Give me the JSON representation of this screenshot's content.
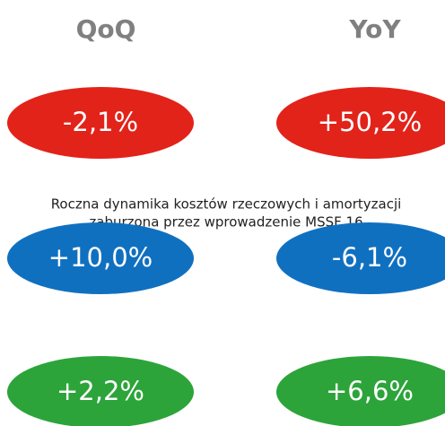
{
  "columns": [
    "QoQ",
    "YoY"
  ],
  "rows": [
    {
      "color": "#e2231a",
      "values": [
        "-2,1%",
        "+50,2%"
      ],
      "note": [
        "Roczna dynamika kosztów rzeczowych i amortyzacji",
        "zaburzona przez wprowadzenie MSSF 16"
      ]
    },
    {
      "color": "#1070c0",
      "values": [
        "+10,0%",
        "-6,1%"
      ]
    },
    {
      "color": "#2ca43a",
      "values": [
        "+2,2%",
        "+6,6%"
      ]
    }
  ]
}
